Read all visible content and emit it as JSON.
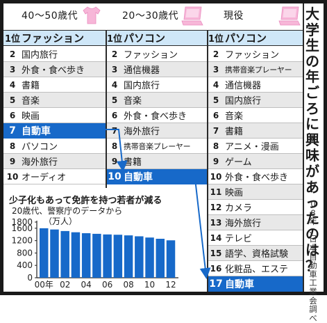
{
  "title": "大学生の年ごろに興味があったのは？",
  "source": "08年、日本自動車工業会調べ",
  "colors": {
    "highlight": "#1769c9",
    "rank1_bg": "#cfe7f8",
    "icon": "#f7b6d8",
    "alt_row": "#e8e8e8"
  },
  "columns": [
    {
      "heading": "40〜50歳代",
      "icon": "tshirt-icon",
      "rank1": {
        "rank": "1位",
        "label": "ファッション"
      },
      "rows": [
        {
          "rank": "2",
          "label": "国内旅行"
        },
        {
          "rank": "3",
          "label": "外食・食べ歩き"
        },
        {
          "rank": "4",
          "label": "書籍"
        },
        {
          "rank": "5",
          "label": "音楽"
        },
        {
          "rank": "6",
          "label": "映画"
        },
        {
          "rank": "7",
          "label": "自動車",
          "highlight": true
        },
        {
          "rank": "8",
          "label": "パソコン"
        },
        {
          "rank": "9",
          "label": "海外旅行"
        },
        {
          "rank": "10",
          "label": "オーディオ"
        }
      ]
    },
    {
      "heading": "20〜30歳代",
      "icon": "laptop-icon",
      "rank1": {
        "rank": "1位",
        "label": "パソコン"
      },
      "rows": [
        {
          "rank": "2",
          "label": "ファッション"
        },
        {
          "rank": "3",
          "label": "通信機器"
        },
        {
          "rank": "4",
          "label": "国内旅行"
        },
        {
          "rank": "5",
          "label": "音楽"
        },
        {
          "rank": "6",
          "label": "外食・食べ歩き"
        },
        {
          "rank": "7",
          "label": "海外旅行"
        },
        {
          "rank": "8",
          "label": "携帯音楽プレーヤー"
        },
        {
          "rank": "9",
          "label": "書籍"
        },
        {
          "rank": "10",
          "label": "自動車",
          "highlight": true
        }
      ]
    },
    {
      "heading": "現役",
      "icon": "laptop-icon",
      "rank1": {
        "rank": "1位",
        "label": "パソコン"
      },
      "rows": [
        {
          "rank": "2",
          "label": "ファッション"
        },
        {
          "rank": "3",
          "label": "携帯音楽プレーヤー"
        },
        {
          "rank": "4",
          "label": "通信機器"
        },
        {
          "rank": "5",
          "label": "国内旅行"
        },
        {
          "rank": "6",
          "label": "音楽"
        },
        {
          "rank": "7",
          "label": "書籍"
        },
        {
          "rank": "8",
          "label": "アニメ・漫画"
        },
        {
          "rank": "9",
          "label": "ゲーム"
        },
        {
          "rank": "10",
          "label": "外食・食べ歩き"
        },
        {
          "rank": "11",
          "label": "映画"
        },
        {
          "rank": "12",
          "label": "カメラ"
        },
        {
          "rank": "13",
          "label": "海外旅行"
        },
        {
          "rank": "14",
          "label": "テレビ"
        },
        {
          "rank": "15",
          "label": "語学、資格試験"
        },
        {
          "rank": "16",
          "label": "化粧品、エステ"
        },
        {
          "rank": "17",
          "label": "自動車",
          "highlight": true
        }
      ]
    }
  ],
  "chart_title": "少子化もあって免許を持つ若者が減る",
  "chart_subtitle": "20歳代、警察庁のデータから",
  "chart_unit": "（万人）",
  "chart_data": {
    "type": "bar",
    "title": "少子化もあって免許を持つ若者が減る",
    "subtitle": "20歳代、警察庁のデータから",
    "ylabel": "（万人）",
    "categories": [
      "00年",
      "01",
      "02",
      "03",
      "04",
      "05",
      "06",
      "07",
      "08",
      "09",
      "10",
      "11",
      "12"
    ],
    "x_tick_labels": [
      "00年",
      "02",
      "04",
      "06",
      "08",
      "10",
      "12"
    ],
    "values": [
      1600,
      1560,
      1510,
      1470,
      1440,
      1420,
      1400,
      1390,
      1370,
      1340,
      1300,
      1260,
      1210
    ],
    "y_ticks": [
      0,
      400,
      800,
      1200,
      1600
    ],
    "y_tick_labels": [
      "0",
      "400",
      "800",
      "1200",
      "1600"
    ],
    "y_top_label": "1800",
    "ylim": [
      0,
      1800
    ],
    "grid": false,
    "bar_color": "#1769c9"
  }
}
